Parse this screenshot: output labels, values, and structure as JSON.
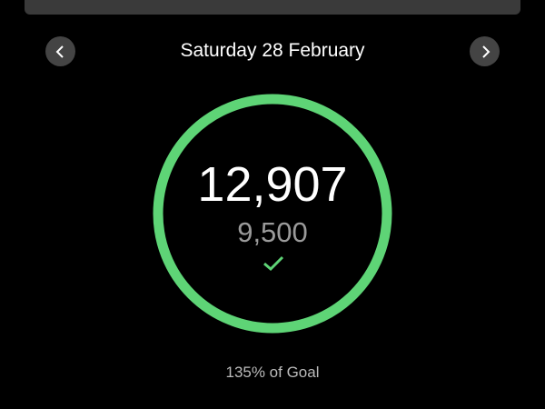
{
  "header": {
    "date": "Saturday 28 February",
    "prev_icon": "chevron-left-icon",
    "next_icon": "chevron-right-icon"
  },
  "summary": {
    "steps": "12,907",
    "goal": "9,500",
    "goal_met_icon": "check-icon",
    "percent_text": "135% of Goal",
    "progress_percent": 135
  },
  "colors": {
    "accent": "#5ed476",
    "background": "#000000"
  }
}
